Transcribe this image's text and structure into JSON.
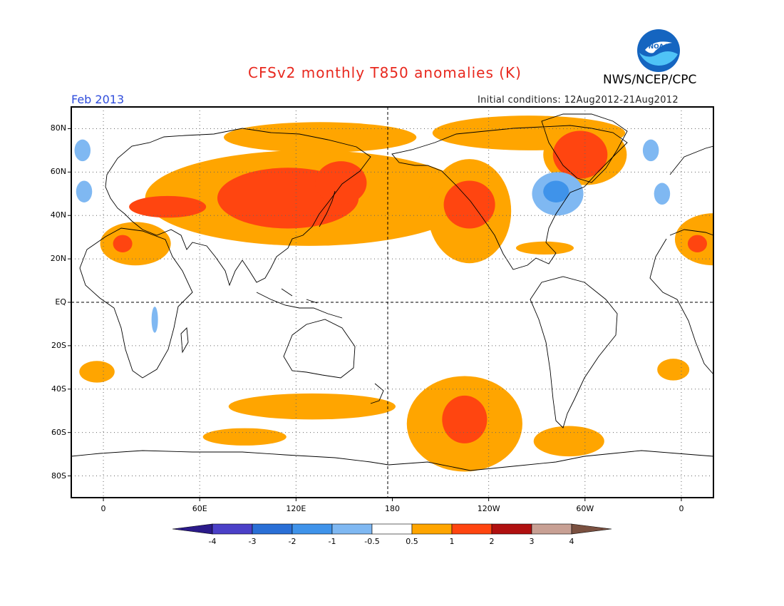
{
  "header": {
    "title": "CFSv2 monthly T850 anomalies (K)",
    "agency": "NWS/NCEP/CPC",
    "valid_month": "Feb 2013",
    "initial_conditions": "Initial conditions: 12Aug2012-21Aug2012"
  },
  "logo": {
    "text": "NOAA",
    "colors": {
      "sky": "#1565c0",
      "wave": "#4fc3f7",
      "gull": "#ffffff"
    }
  },
  "axes": {
    "lat_labels": [
      "80N",
      "60N",
      "40N",
      "20N",
      "EQ",
      "20S",
      "40S",
      "60S",
      "80S"
    ],
    "lon_labels": [
      "0",
      "60E",
      "120E",
      "180",
      "120W",
      "60W",
      "0"
    ]
  },
  "colorbar": {
    "labels": [
      "-4",
      "-3",
      "-2",
      "-1",
      "-0.5",
      "0.5",
      "1",
      "2",
      "3",
      "4"
    ],
    "colors": [
      "#2b1a8a",
      "#4b40c8",
      "#2a6fd6",
      "#3f93ea",
      "#7fb8f2",
      "#ffffff",
      "#ffa500",
      "#ff4510",
      "#b01010",
      "#c8a094",
      "#7a5040"
    ]
  },
  "chart_data": {
    "type": "heatmap",
    "variable": "T850 anomaly",
    "units": "K",
    "xlim": [
      -20,
      380
    ],
    "ylim": [
      -90,
      90
    ],
    "anomaly_regions": [
      {
        "level": 1,
        "lon": 128,
        "lat": 48,
        "rlon": 102,
        "rlat": 22
      },
      {
        "level": 1,
        "lon": 135,
        "lat": 76,
        "rlon": 60,
        "rlat": 7
      },
      {
        "level": 1,
        "lon": 265,
        "lat": 78,
        "rlon": 60,
        "rlat": 8
      },
      {
        "level": 1,
        "lon": 300,
        "lat": 68,
        "rlon": 26,
        "rlat": 14
      },
      {
        "level": 1,
        "lon": 228,
        "lat": 42,
        "rlon": 26,
        "rlat": 24
      },
      {
        "level": 1,
        "lon": 20,
        "lat": 27,
        "rlon": 22,
        "rlat": 10
      },
      {
        "level": 1,
        "lon": 380,
        "lat": 29,
        "rlon": 24,
        "rlat": 12
      },
      {
        "level": 1,
        "lon": 275,
        "lat": 25,
        "rlon": 18,
        "rlat": 3
      },
      {
        "level": 1,
        "lon": 225,
        "lat": -56,
        "rlon": 36,
        "rlat": 22
      },
      {
        "level": 1,
        "lon": 130,
        "lat": -48,
        "rlon": 52,
        "rlat": 6
      },
      {
        "level": 1,
        "lon": 88,
        "lat": -62,
        "rlon": 26,
        "rlat": 4
      },
      {
        "level": 1,
        "lon": 290,
        "lat": -64,
        "rlon": 22,
        "rlat": 7
      },
      {
        "level": 1,
        "lon": -4,
        "lat": -32,
        "rlon": 11,
        "rlat": 5
      },
      {
        "level": 1,
        "lon": 355,
        "lat": -31,
        "rlon": 10,
        "rlat": 5
      },
      {
        "level": 2,
        "lon": 115,
        "lat": 48,
        "rlon": 44,
        "rlat": 14
      },
      {
        "level": 2,
        "lon": 148,
        "lat": 55,
        "rlon": 16,
        "rlat": 10
      },
      {
        "level": 2,
        "lon": 40,
        "lat": 44,
        "rlon": 24,
        "rlat": 5
      },
      {
        "level": 2,
        "lon": 228,
        "lat": 45,
        "rlon": 16,
        "rlat": 11
      },
      {
        "level": 2,
        "lon": 297,
        "lat": 68,
        "rlon": 17,
        "rlat": 11
      },
      {
        "level": 2,
        "lon": 225,
        "lat": -54,
        "rlon": 14,
        "rlat": 11
      },
      {
        "level": 2,
        "lon": 12,
        "lat": 27,
        "rlon": 6,
        "rlat": 4
      },
      {
        "level": 2,
        "lon": 370,
        "lat": 27,
        "rlon": 6,
        "rlat": 4
      },
      {
        "level": -0.5,
        "lon": 283,
        "lat": 50,
        "rlon": 16,
        "rlat": 10
      },
      {
        "level": -0.5,
        "lon": -13,
        "lat": 70,
        "rlon": 5,
        "rlat": 5
      },
      {
        "level": -0.5,
        "lon": -12,
        "lat": 51,
        "rlon": 5,
        "rlat": 5
      },
      {
        "level": -0.5,
        "lon": 341,
        "lat": 70,
        "rlon": 5,
        "rlat": 5
      },
      {
        "level": -0.5,
        "lon": 348,
        "lat": 50,
        "rlon": 5,
        "rlat": 5
      },
      {
        "level": -0.5,
        "lon": 32,
        "lat": -8,
        "rlon": 2,
        "rlat": 6
      },
      {
        "level": -1,
        "lon": 282,
        "lat": 51,
        "rlon": 8,
        "rlat": 5
      }
    ]
  }
}
